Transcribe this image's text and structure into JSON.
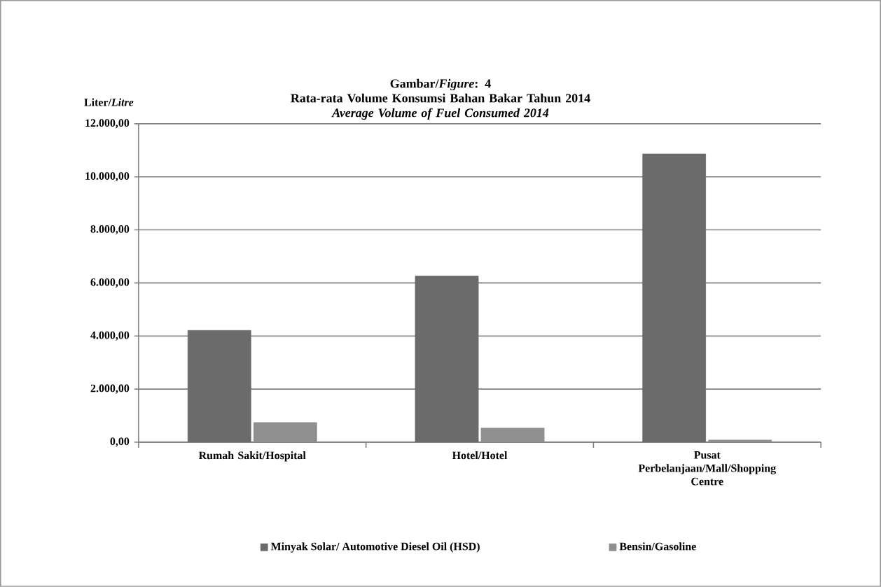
{
  "chart_data": {
    "type": "bar",
    "title": "Gambar/*Figure*: 4\nRata-rata Volume Konsumsi Bahan Bakar Tahun 2014",
    "subtitle": "Average Volume of Fuel Consumed 2014",
    "ylabel": "Liter/*Litre*",
    "categories": [
      "Rumah Sakit/Hospital",
      "Hotel/Hotel",
      "Pusat Perbelanjaan/Mall/Shopping Centre"
    ],
    "series": [
      {
        "name": "Minyak Solar/ Automotive Diesel Oil (HSD)",
        "color": "#6b6b6b",
        "values": [
          4210,
          6260,
          10860
        ]
      },
      {
        "name": "Bensin/Gasoline",
        "color": "#8f8f8f",
        "values": [
          740,
          530,
          80
        ]
      }
    ],
    "ylim": [
      0,
      12000
    ],
    "yticks": [
      {
        "value": 0,
        "label": "0,00"
      },
      {
        "value": 2000,
        "label": "2.000,00"
      },
      {
        "value": 4000,
        "label": "4.000,00"
      },
      {
        "value": 6000,
        "label": "6.000,00"
      },
      {
        "value": 8000,
        "label": "8.000,00"
      },
      {
        "value": 10000,
        "label": "10.000,00"
      },
      {
        "value": 12000,
        "label": "12.000,00"
      }
    ],
    "grid": "y",
    "legend": "bottom"
  }
}
